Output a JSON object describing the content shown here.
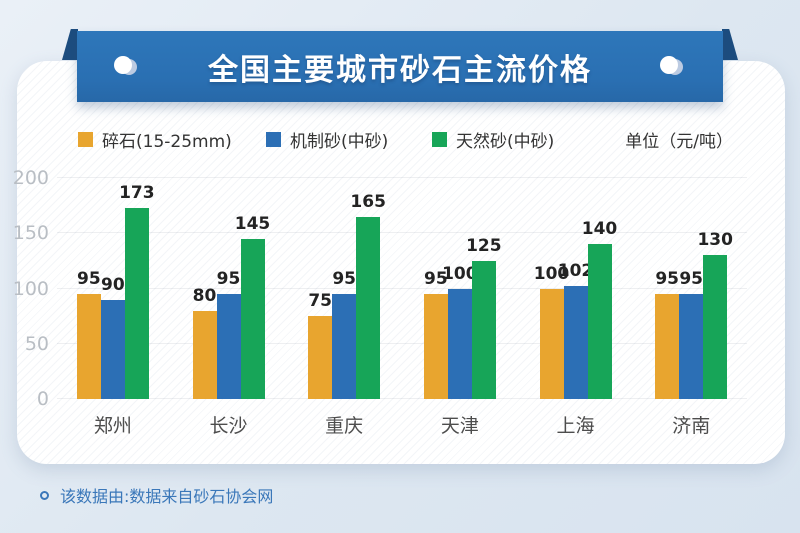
{
  "banner": {
    "title": "全国主要城市砂石主流价格"
  },
  "legend": {
    "items": [
      {
        "label": "碎石(15-25mm)",
        "color": "#E8A52F"
      },
      {
        "label": "机制砂(中砂)",
        "color": "#2C6FB5"
      },
      {
        "label": "天然砂(中砂)",
        "color": "#17A558"
      }
    ],
    "unit_label": "单位（元/吨）"
  },
  "chart_data": {
    "type": "bar",
    "title": "全国主要城市砂石主流价格",
    "unit": "元/吨",
    "categories": [
      "郑州",
      "长沙",
      "重庆",
      "天津",
      "上海",
      "济南"
    ],
    "series": [
      {
        "name": "碎石(15-25mm)",
        "color": "#E8A52F",
        "values": [
          95,
          80,
          75,
          95,
          100,
          95
        ]
      },
      {
        "name": "机制砂(中砂)",
        "color": "#2C6FB5",
        "values": [
          90,
          95,
          95,
          100,
          102,
          95
        ]
      },
      {
        "name": "天然砂(中砂)",
        "color": "#17A558",
        "values": [
          173,
          145,
          165,
          125,
          140,
          130
        ]
      }
    ],
    "ylim": [
      0,
      200
    ],
    "yticks": [
      0,
      50,
      100,
      150,
      200
    ],
    "grid": true,
    "legend_position": "top"
  },
  "footer": {
    "note": "该数据由:数据来自砂石协会网"
  },
  "colors": {
    "ribbon_blue": "#2A6FB2",
    "ribbon_fold": "#1D4D7F",
    "background": "#DDE7F1",
    "card": "#FFFFFF",
    "note_text": "#3A77B9",
    "value_label": "#232323",
    "axis_label": "#B9BEC4",
    "category_label": "#4D4D4D"
  }
}
